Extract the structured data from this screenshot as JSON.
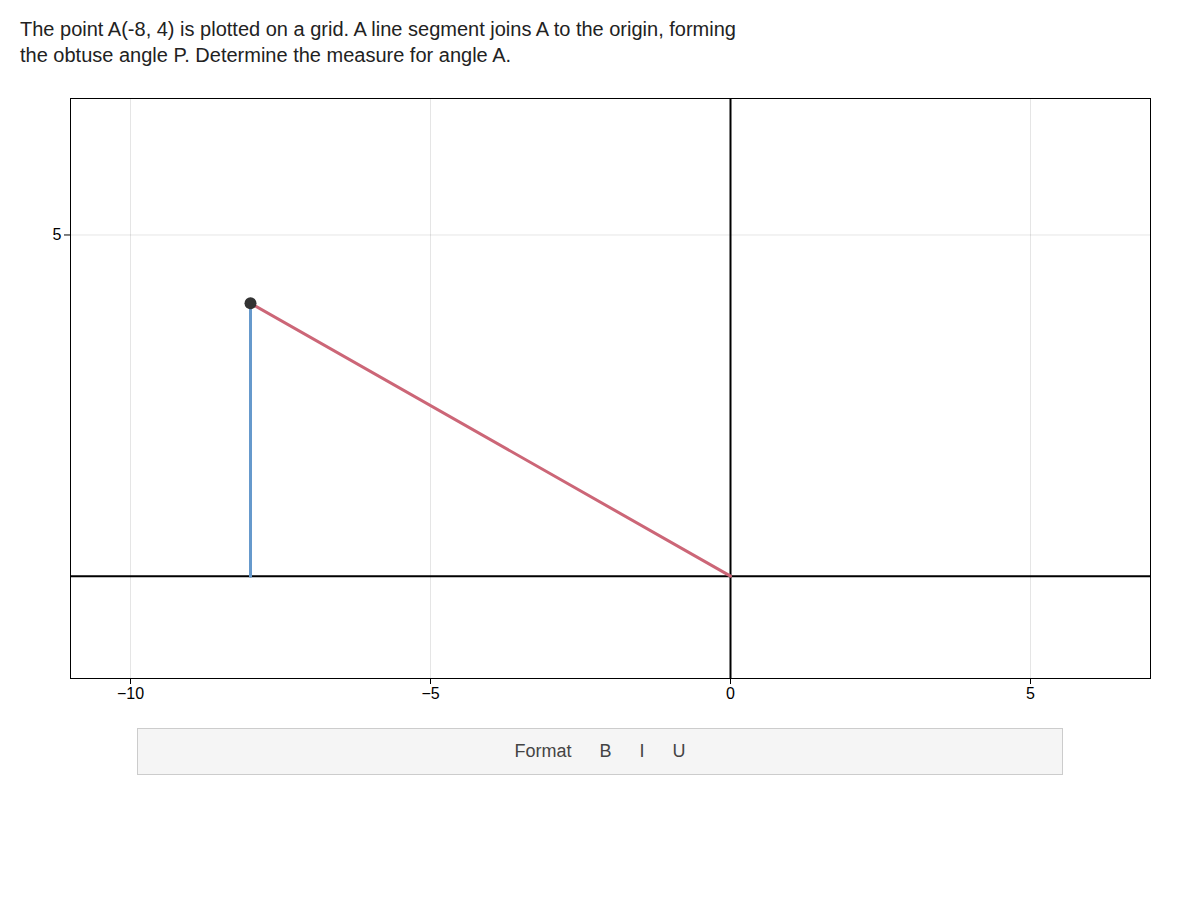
{
  "chart_data": {
    "type": "line",
    "title": "The point A(-8, 4) is plotted on a grid. A line segment joins A to the origin, forming\nthe obtuse angle P. Determine the measure for angle A.",
    "series": [
      {
        "color": "#cc6677",
        "x": [
          -8,
          0
        ],
        "values": [
          4,
          0
        ]
      },
      {
        "color": "#6699cc",
        "x": [
          -8,
          -8
        ],
        "values": [
          0,
          4
        ]
      },
      {
        "type": "scatter",
        "color": "#333333",
        "x": [
          -8
        ],
        "values": [
          4
        ]
      }
    ],
    "xlim": [
      -11,
      7
    ],
    "ylim": [
      -1.5,
      7
    ],
    "xticks": [
      -10,
      -5,
      0,
      5
    ],
    "yticks": [
      5
    ],
    "grid": true,
    "annotations": [
      "Format",
      "B",
      "I",
      "U"
    ]
  }
}
